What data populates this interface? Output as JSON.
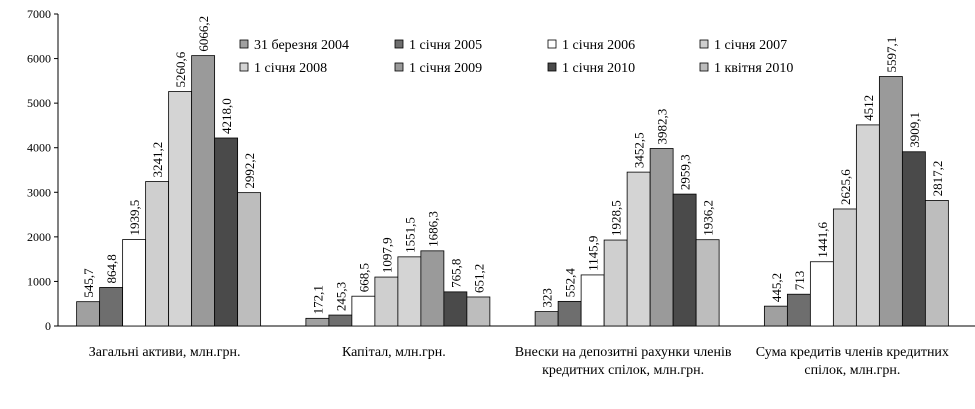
{
  "chart_data": {
    "type": "bar",
    "categories": [
      "Загальні активи, млн.грн.",
      "Капітал, млн.грн.",
      "Внески на  депозитні рахунки членів кредитних спілок, млн.грн.",
      "Сума кредитів членів кредитних спілок,  млн.грн."
    ],
    "series": [
      {
        "name": "31 березня 2004",
        "color": "#a0a0a0",
        "values": [
          545.7,
          172.1,
          323,
          445.2
        ],
        "value_labels": [
          "545,7",
          "172,1",
          "323",
          "445,2"
        ]
      },
      {
        "name": "1 січня 2005",
        "color": "#6e6e6e",
        "values": [
          864.8,
          245.3,
          552.4,
          713
        ],
        "value_labels": [
          "864,8",
          "245,3",
          "552,4",
          "713"
        ]
      },
      {
        "name": "1 січня 2006",
        "color": "#ffffff",
        "values": [
          1939.5,
          668.5,
          1145.9,
          1441.6
        ],
        "value_labels": [
          "1939,5",
          "668,5",
          "1145,9",
          "1441,6"
        ]
      },
      {
        "name": "1 січня 2007",
        "color": "#cfcfcf",
        "values": [
          3241.2,
          1097.9,
          1928.5,
          2625.6
        ],
        "value_labels": [
          "3241,2",
          "1097,9",
          "1928,5",
          "2625,6"
        ]
      },
      {
        "name": "1 січня 2008",
        "color": "#d4d4d4",
        "values": [
          5260.6,
          1551.5,
          3452.5,
          4512
        ],
        "value_labels": [
          "5260,6",
          "1551,5",
          "3452,5",
          "4512"
        ]
      },
      {
        "name": "1 січня 2009",
        "color": "#9a9a9a",
        "values": [
          6066.2,
          1686.3,
          3982.3,
          5597.1
        ],
        "value_labels": [
          "6066,2",
          "1686,3",
          "3982,3",
          "5597,1"
        ]
      },
      {
        "name": "1 січня 2010",
        "color": "#4a4a4a",
        "values": [
          4218.0,
          765.8,
          2959.3,
          3909.1
        ],
        "value_labels": [
          "4218,0",
          "765,8",
          "2959,3",
          "3909,1"
        ]
      },
      {
        "name": "1 квітня 2010",
        "color": "#bdbdbd",
        "values": [
          2992.2,
          651.2,
          1936.2,
          2817.2
        ],
        "value_labels": [
          "2992,2",
          "651,2",
          "1936,2",
          "2817,2"
        ]
      }
    ],
    "ylim": [
      0,
      7000
    ],
    "yticks": [
      0,
      1000,
      2000,
      3000,
      4000,
      5000,
      6000,
      7000
    ],
    "grid": false,
    "legend": "top"
  }
}
